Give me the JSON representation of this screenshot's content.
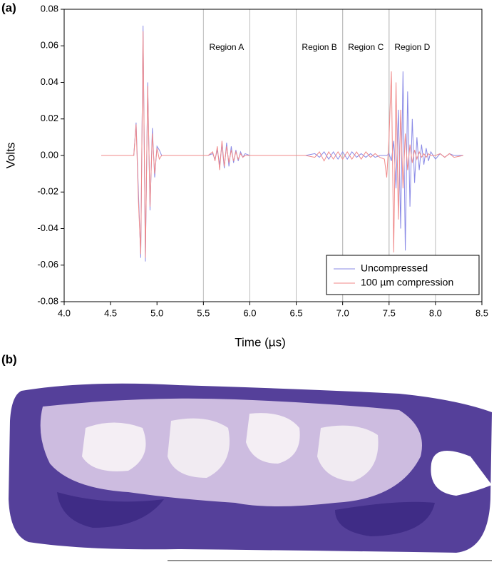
{
  "panel_a_label": "(a)",
  "panel_b_label": "(b)",
  "chart_data": {
    "type": "line",
    "xlabel": "Time (µs)",
    "ylabel": "Volts",
    "xlim": [
      4.0,
      8.5
    ],
    "xticks": [
      {
        "value": 4,
        "label": "4.0"
      },
      4.5,
      {
        "value": 5,
        "label": "5.0"
      },
      5.5,
      {
        "value": 6,
        "label": "6.0"
      },
      6.5,
      {
        "value": 7,
        "label": "7.0"
      },
      7.5,
      {
        "value": 8,
        "label": "8.0"
      },
      8.5
    ],
    "ylim": [
      -0.08,
      0.08
    ],
    "yticks": [
      -0.08,
      -0.06,
      -0.04,
      -0.02,
      {
        "value": 0,
        "label": "0.00"
      },
      0.02,
      0.04,
      0.06,
      0.08
    ],
    "legend": "lower right",
    "regions": [
      {
        "label": "Region A",
        "start": 5.5,
        "end": 6.0
      },
      {
        "label": "Region B",
        "start": 6.5,
        "end": 7.0
      },
      {
        "label": "Region C",
        "start": 7.0,
        "end": 7.5
      },
      {
        "label": "Region D",
        "start": 7.5,
        "end": 8.0
      }
    ],
    "x": [
      4.4,
      4.6,
      4.75,
      4.775,
      4.8,
      4.825,
      4.85,
      4.875,
      4.9,
      4.925,
      4.95,
      4.975,
      5.0,
      5.025,
      5.05,
      5.1,
      5.3,
      5.55,
      5.6,
      5.625,
      5.65,
      5.675,
      5.7,
      5.725,
      5.75,
      5.775,
      5.8,
      5.825,
      5.85,
      5.875,
      5.9,
      5.925,
      5.95,
      6.0,
      6.05,
      6.3,
      6.6,
      6.7,
      6.75,
      6.8,
      6.85,
      6.9,
      6.95,
      7.0,
      7.05,
      7.1,
      7.15,
      7.2,
      7.25,
      7.3,
      7.35,
      7.4,
      7.45,
      7.475,
      7.5,
      7.525,
      7.55,
      7.575,
      7.6,
      7.625,
      7.65,
      7.675,
      7.7,
      7.725,
      7.75,
      7.775,
      7.8,
      7.825,
      7.85,
      7.875,
      7.9,
      7.925,
      7.95,
      8.0,
      8.05,
      8.1,
      8.15,
      8.2,
      8.3
    ],
    "series": [
      {
        "name": "Uncompressed",
        "color": "#8a8ae6",
        "values": [
          0,
          0,
          0,
          0.018,
          -0.02,
          -0.056,
          0.071,
          -0.058,
          0.04,
          -0.03,
          0.015,
          -0.012,
          0.005,
          0.003,
          0,
          0,
          0,
          0,
          0.001,
          -0.002,
          0.003,
          -0.005,
          0.006,
          -0.007,
          0.007,
          -0.006,
          0.005,
          -0.004,
          0.003,
          -0.003,
          0.002,
          -0.001,
          0.001,
          0,
          0,
          0,
          0,
          0.001,
          -0.001,
          0.002,
          -0.002,
          0.002,
          -0.002,
          0.002,
          -0.002,
          0.002,
          -0.001,
          0.001,
          -0.001,
          0.001,
          -0.001,
          0,
          0,
          0,
          0.001,
          -0.003,
          0.008,
          -0.018,
          0.025,
          -0.04,
          0.046,
          -0.052,
          0.035,
          -0.028,
          0.02,
          -0.015,
          0.01,
          -0.008,
          0.006,
          -0.005,
          0.004,
          -0.003,
          0.002,
          -0.002,
          0.001,
          -0.001,
          0.001,
          0,
          0
        ]
      },
      {
        "name": "100 µm compression",
        "color": "#f08a8a",
        "values": [
          0,
          0,
          0,
          0.017,
          -0.025,
          -0.054,
          0.068,
          -0.056,
          0.038,
          -0.028,
          0.012,
          -0.01,
          0.004,
          -0.002,
          0,
          0,
          0,
          0,
          0.002,
          -0.003,
          0.005,
          -0.008,
          0.008,
          -0.006,
          0.005,
          -0.004,
          0.003,
          -0.003,
          0.002,
          -0.002,
          0.001,
          -0.001,
          0,
          0,
          0,
          0,
          0,
          -0.001,
          0.002,
          -0.003,
          0.002,
          -0.002,
          0.002,
          -0.002,
          0.002,
          -0.002,
          0.002,
          -0.002,
          0.002,
          -0.001,
          0.001,
          -0.001,
          -0.002,
          -0.012,
          0.01,
          0.046,
          -0.053,
          0.04,
          -0.035,
          0.025,
          -0.018,
          0.012,
          -0.008,
          0.006,
          -0.004,
          0.003,
          -0.002,
          0.002,
          -0.001,
          0.001,
          -0.001,
          0.001,
          0,
          0,
          0.001,
          -0.001,
          0.001,
          -0.001,
          0
        ]
      }
    ]
  }
}
